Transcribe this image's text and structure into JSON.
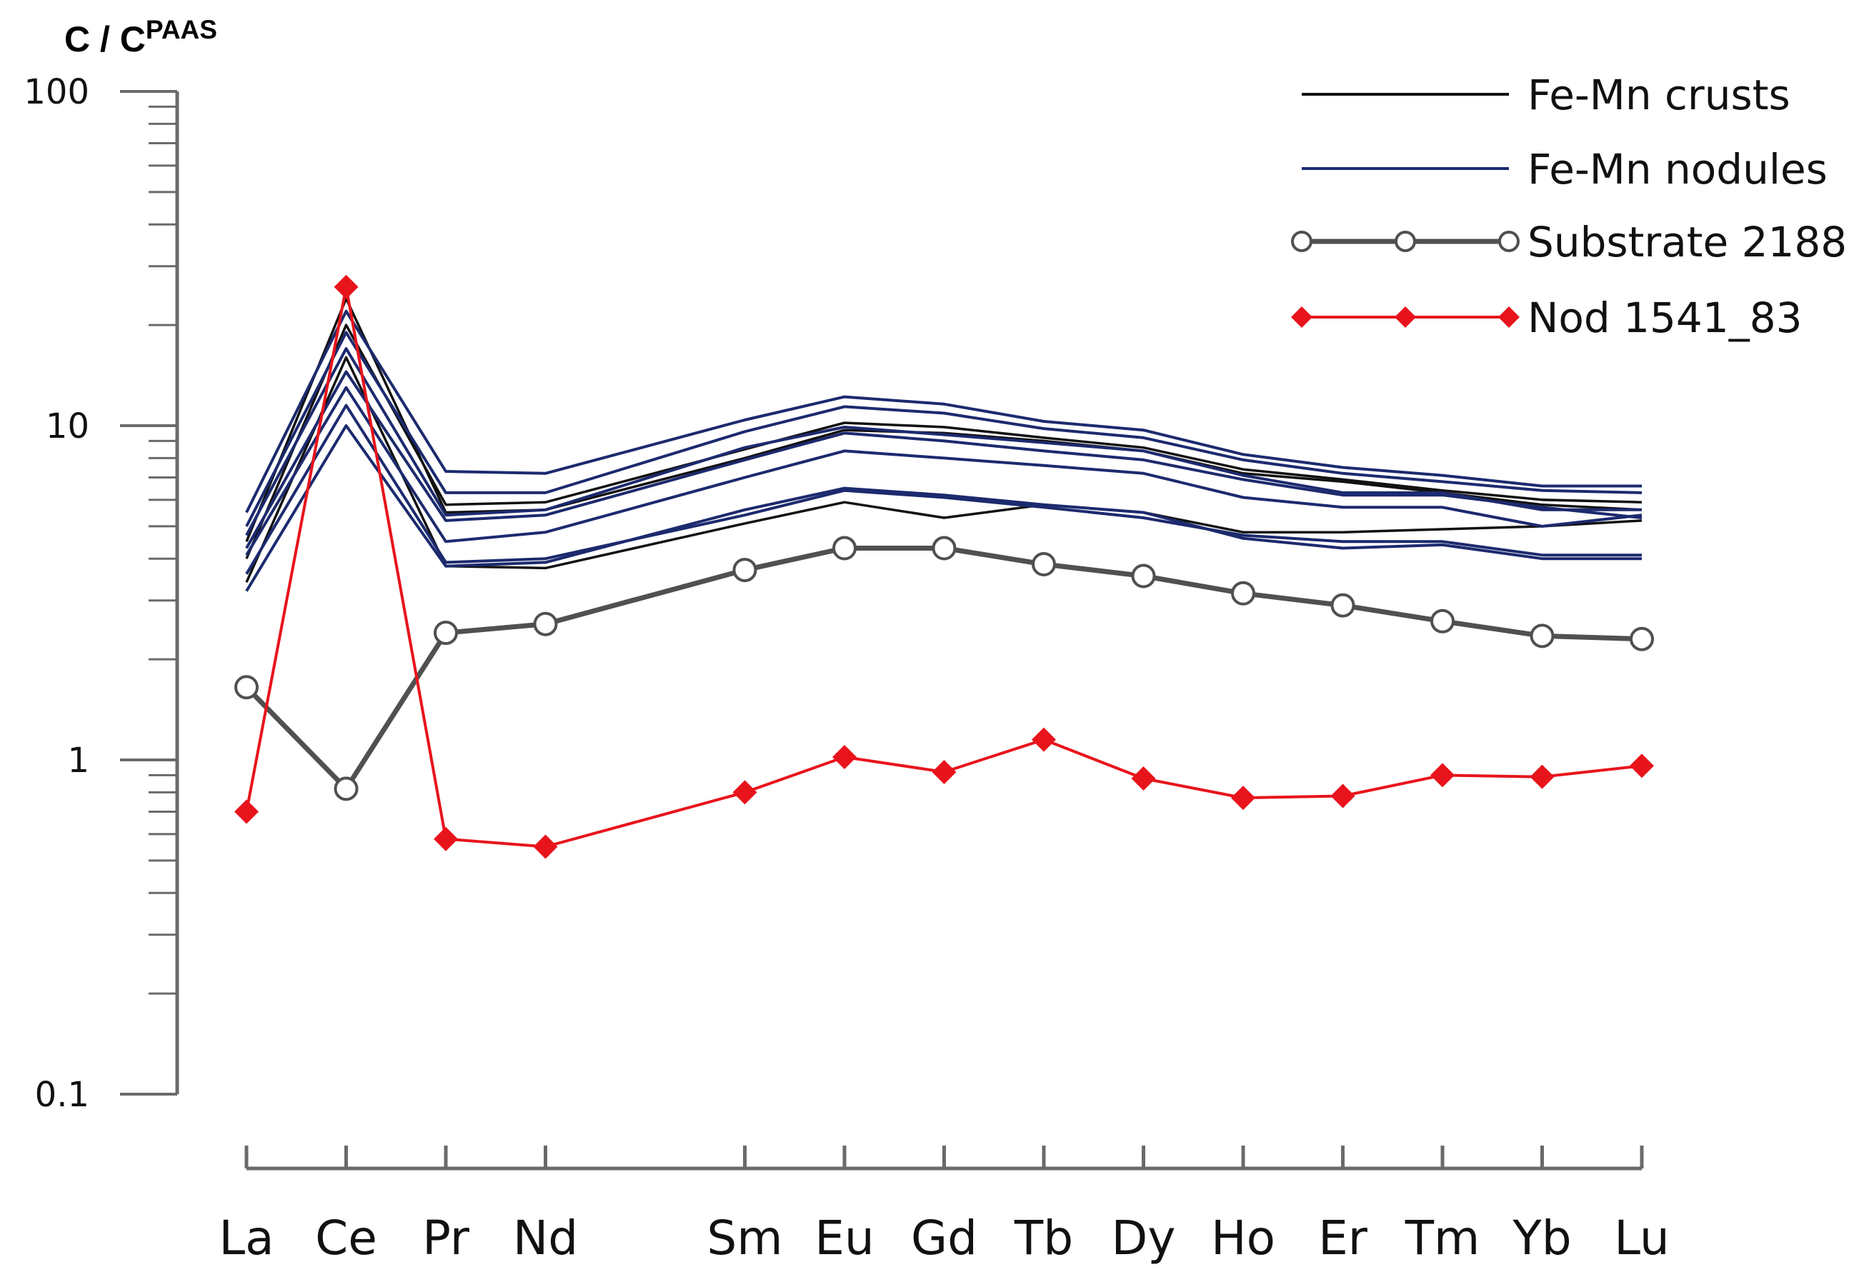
{
  "chart_data": {
    "type": "line",
    "y_label_main": "C / C",
    "y_label_sup": "PAAS",
    "y_scale": "log",
    "ylim": [
      0.1,
      100
    ],
    "y_major_ticks": [
      0.1,
      1,
      10,
      100
    ],
    "y_tick_labels": [
      "0.1",
      "1",
      "10",
      "100"
    ],
    "categories": [
      "La",
      "Ce",
      "Pr",
      "Nd",
      "Sm",
      "Eu",
      "Gd",
      "Tb",
      "Dy",
      "Ho",
      "Er",
      "Tm",
      "Yb",
      "Lu"
    ],
    "category_positions": [
      0,
      1,
      2,
      3,
      5,
      6,
      7,
      8,
      9,
      10,
      11,
      12,
      13,
      14
    ],
    "legend": {
      "position": "top-right",
      "entries": [
        {
          "label": "Fe-Mn crusts",
          "color": "#111111",
          "marker": "none"
        },
        {
          "label": "Fe-Mn nodules",
          "color": "#1c2a6e",
          "marker": "none"
        },
        {
          "label": "Substrate 2188",
          "color": "#505050",
          "marker": "circle"
        },
        {
          "label": "Nod 1541_83",
          "color": "#e8141c",
          "marker": "diamond"
        }
      ]
    },
    "crusts": {
      "name": "Fe-Mn crusts",
      "color": "#111111",
      "series": [
        [
          4.0,
          20.0,
          5.8,
          5.9,
          8.5,
          10.2,
          9.9,
          9.2,
          8.6,
          7.4,
          6.9,
          6.4,
          6.0,
          5.9
        ],
        [
          3.4,
          16.0,
          3.8,
          3.75,
          5.1,
          5.9,
          5.3,
          5.8,
          5.5,
          4.8,
          4.8,
          4.9,
          5.0,
          5.2
        ],
        [
          4.5,
          24.0,
          5.5,
          5.6,
          8.0,
          9.7,
          9.5,
          9.0,
          8.4,
          7.2,
          6.8,
          6.3,
          5.8,
          5.6
        ]
      ]
    },
    "nodules": {
      "name": "Fe-Mn nodules",
      "color": "#1c2a6e",
      "series": [
        [
          5.5,
          22.0,
          7.3,
          7.2,
          10.4,
          12.2,
          11.6,
          10.3,
          9.7,
          8.2,
          7.5,
          7.1,
          6.6,
          6.6
        ],
        [
          5.0,
          19.0,
          6.3,
          6.3,
          9.6,
          11.4,
          10.9,
          9.8,
          9.2,
          7.9,
          7.2,
          6.8,
          6.4,
          6.3
        ],
        [
          4.7,
          17.0,
          5.4,
          5.6,
          8.6,
          9.9,
          9.4,
          8.9,
          8.4,
          7.1,
          6.3,
          6.3,
          5.6,
          5.6
        ],
        [
          4.3,
          14.5,
          5.2,
          5.4,
          7.9,
          9.5,
          9.0,
          8.4,
          7.9,
          6.9,
          6.2,
          6.2,
          5.7,
          5.3
        ],
        [
          4.1,
          13.0,
          4.5,
          4.8,
          7.0,
          8.4,
          8.0,
          7.6,
          7.2,
          6.1,
          5.7,
          5.7,
          5.0,
          5.4
        ],
        [
          3.6,
          11.5,
          3.9,
          4.0,
          5.4,
          6.4,
          6.1,
          5.7,
          5.3,
          4.7,
          4.5,
          4.5,
          4.1,
          4.1
        ],
        [
          3.2,
          10.0,
          3.8,
          3.9,
          5.6,
          6.5,
          6.2,
          5.8,
          5.5,
          4.6,
          4.3,
          4.4,
          4.0,
          4.0
        ]
      ]
    },
    "substrate": {
      "name": "Substrate 2188",
      "color": "#505050",
      "values": [
        1.65,
        0.82,
        2.4,
        2.55,
        null,
        3.7,
        4.3,
        4.3,
        3.85,
        3.55,
        3.15,
        2.9,
        2.6,
        2.35,
        2.3
      ],
      "points": [
        1.65,
        0.82,
        2.4,
        2.55,
        3.7,
        4.3,
        4.3,
        3.85,
        3.55,
        3.15,
        2.9,
        2.6,
        2.35,
        2.3
      ]
    },
    "nod1541": {
      "name": "Nod 1541_83",
      "color": "#e8141c",
      "points": [
        0.7,
        26.0,
        0.58,
        0.55,
        0.8,
        1.02,
        0.92,
        1.15,
        0.88,
        0.77,
        0.78,
        0.9,
        0.89,
        0.96
      ]
    }
  }
}
